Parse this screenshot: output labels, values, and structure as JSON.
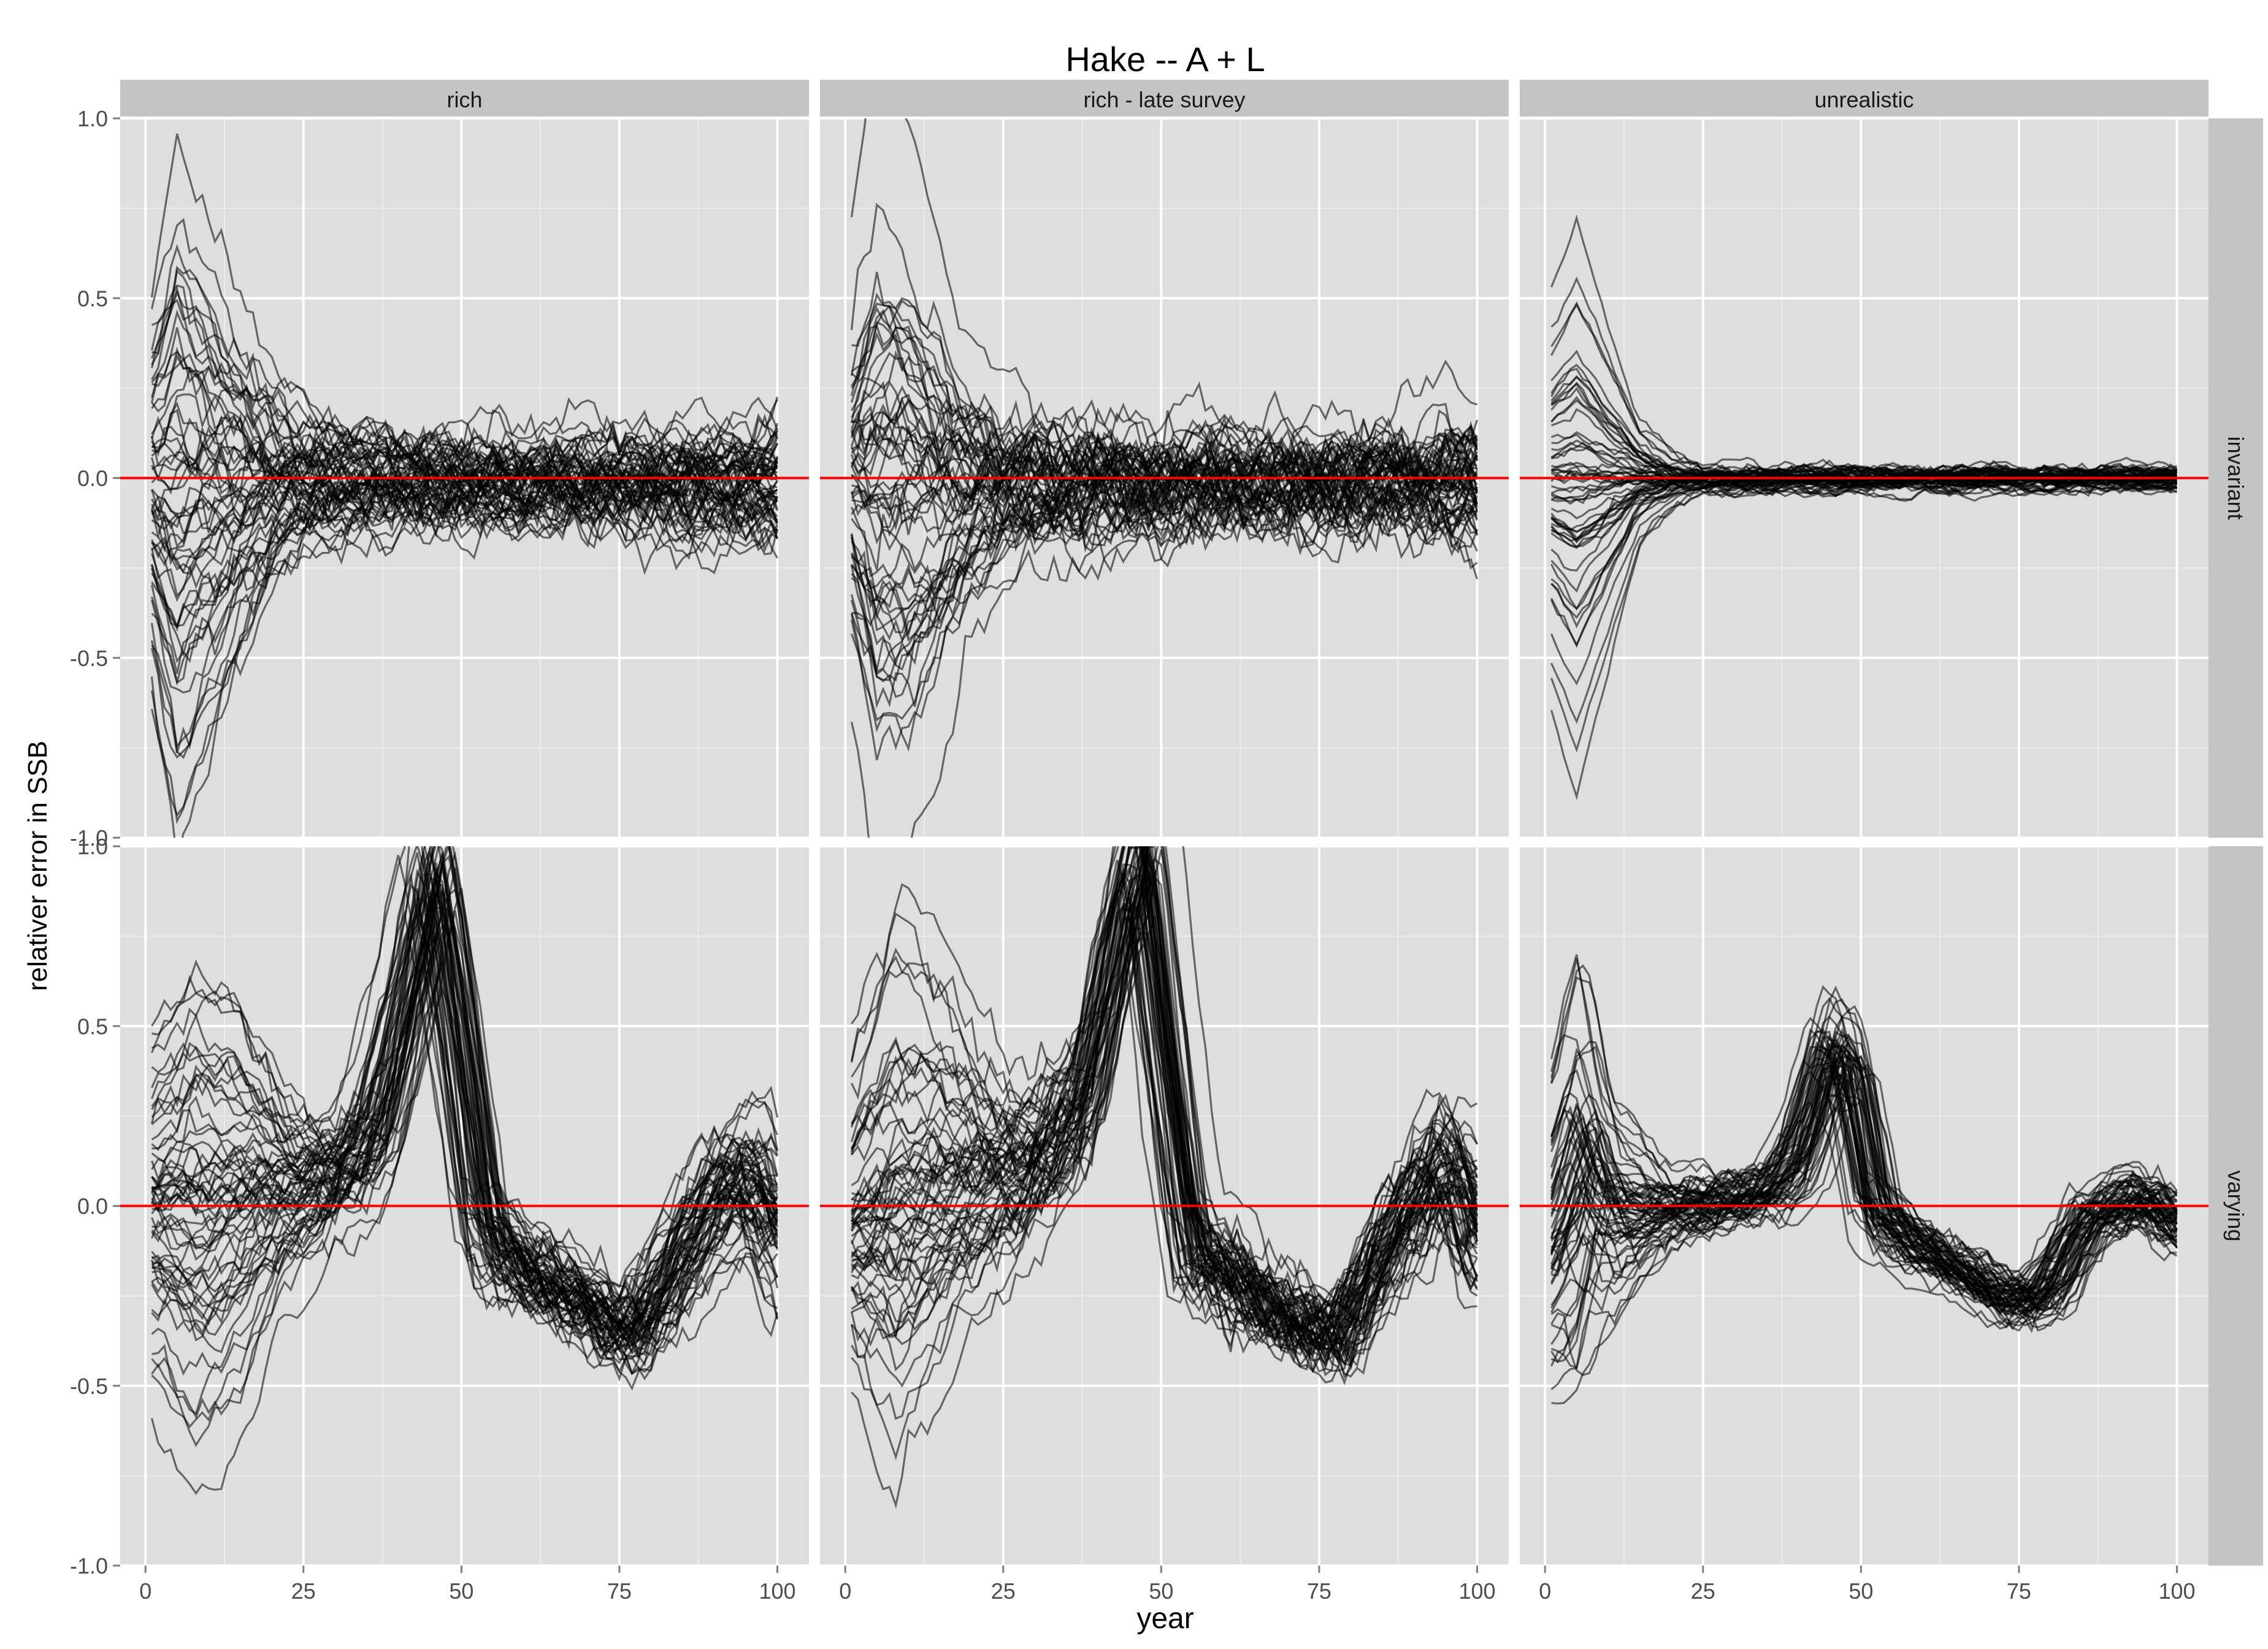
{
  "chart_data": {
    "type": "line",
    "title": "Hake -- A + L",
    "xlabel": "year",
    "ylabel": "relativer error in SSB",
    "xlim": [
      -4,
      105
    ],
    "ylim": [
      -1.0,
      1.0
    ],
    "xticks": [
      0,
      25,
      50,
      75,
      100
    ],
    "yticks": [
      -1.0,
      -0.5,
      0.0,
      0.5,
      1.0
    ],
    "ytick_labels": [
      "-1.0",
      "-0.5",
      "0.0",
      "0.5",
      "1.0"
    ],
    "columns": [
      "rich",
      "rich - late survey",
      "unrealistic"
    ],
    "rows": [
      "invariant",
      "varying"
    ],
    "grid": true,
    "reference_line": {
      "y": 0.0,
      "color": "#ff0000"
    },
    "line_color": "#000000",
    "n_lines_per_panel": 60,
    "panels": [
      {
        "column": "rich",
        "row": "invariant",
        "mean": [
          [
            0,
            0.0
          ],
          [
            100,
            0.0
          ]
        ],
        "spread": [
          [
            0,
            0.2
          ],
          [
            5,
            0.38
          ],
          [
            10,
            0.3
          ],
          [
            15,
            0.2
          ],
          [
            20,
            0.12
          ],
          [
            25,
            0.08
          ],
          [
            35,
            0.06
          ],
          [
            50,
            0.05
          ],
          [
            75,
            0.05
          ],
          [
            100,
            0.08
          ]
        ],
        "noise": 0.03
      },
      {
        "column": "rich - late survey",
        "row": "invariant",
        "mean": [
          [
            0,
            0.0
          ],
          [
            10,
            -0.03
          ],
          [
            100,
            0.0
          ]
        ],
        "spread": [
          [
            0,
            0.2
          ],
          [
            5,
            0.42
          ],
          [
            10,
            0.38
          ],
          [
            15,
            0.26
          ],
          [
            20,
            0.16
          ],
          [
            25,
            0.1
          ],
          [
            35,
            0.07
          ],
          [
            50,
            0.06
          ],
          [
            75,
            0.06
          ],
          [
            100,
            0.08
          ]
        ],
        "noise": 0.035
      },
      {
        "column": "unrealistic",
        "row": "invariant",
        "mean": [
          [
            0,
            0.0
          ],
          [
            100,
            0.0
          ]
        ],
        "spread": [
          [
            0,
            0.2
          ],
          [
            5,
            0.3
          ],
          [
            10,
            0.18
          ],
          [
            15,
            0.07
          ],
          [
            20,
            0.03
          ],
          [
            25,
            0.015
          ],
          [
            100,
            0.012
          ]
        ],
        "noise": 0.008
      },
      {
        "column": "rich",
        "row": "varying",
        "mean": [
          [
            0,
            -0.05
          ],
          [
            10,
            -0.08
          ],
          [
            20,
            0.0
          ],
          [
            30,
            0.06
          ],
          [
            37,
            0.2
          ],
          [
            43,
            0.65
          ],
          [
            46,
            0.9
          ],
          [
            50,
            0.45
          ],
          [
            54,
            -0.08
          ],
          [
            60,
            -0.18
          ],
          [
            70,
            -0.28
          ],
          [
            77,
            -0.38
          ],
          [
            85,
            -0.15
          ],
          [
            93,
            0.05
          ],
          [
            97,
            0.05
          ],
          [
            100,
            -0.1
          ]
        ],
        "spread": [
          [
            0,
            0.22
          ],
          [
            8,
            0.32
          ],
          [
            15,
            0.26
          ],
          [
            22,
            0.12
          ],
          [
            30,
            0.06
          ],
          [
            45,
            0.1
          ],
          [
            50,
            0.1
          ],
          [
            60,
            0.05
          ],
          [
            75,
            0.04
          ],
          [
            90,
            0.08
          ],
          [
            100,
            0.1
          ]
        ],
        "noise": 0.025
      },
      {
        "column": "rich - late survey",
        "row": "varying",
        "mean": [
          [
            0,
            -0.05
          ],
          [
            10,
            0.05
          ],
          [
            20,
            0.08
          ],
          [
            30,
            0.1
          ],
          [
            38,
            0.3
          ],
          [
            44,
            0.8
          ],
          [
            47,
            1.0
          ],
          [
            51,
            0.4
          ],
          [
            55,
            -0.1
          ],
          [
            62,
            -0.22
          ],
          [
            72,
            -0.32
          ],
          [
            78,
            -0.38
          ],
          [
            86,
            -0.1
          ],
          [
            94,
            0.12
          ],
          [
            98,
            0.05
          ],
          [
            100,
            -0.08
          ]
        ],
        "spread": [
          [
            0,
            0.22
          ],
          [
            8,
            0.38
          ],
          [
            15,
            0.3
          ],
          [
            22,
            0.18
          ],
          [
            30,
            0.1
          ],
          [
            45,
            0.12
          ],
          [
            50,
            0.12
          ],
          [
            60,
            0.05
          ],
          [
            75,
            0.04
          ],
          [
            90,
            0.08
          ],
          [
            100,
            0.1
          ]
        ],
        "noise": 0.03
      },
      {
        "column": "unrealistic",
        "row": "varying",
        "mean": [
          [
            0,
            -0.1
          ],
          [
            6,
            0.2
          ],
          [
            10,
            0.0
          ],
          [
            20,
            0.0
          ],
          [
            35,
            0.04
          ],
          [
            40,
            0.15
          ],
          [
            45,
            0.45
          ],
          [
            48,
            0.4
          ],
          [
            52,
            0.0
          ],
          [
            58,
            -0.1
          ],
          [
            66,
            -0.18
          ],
          [
            75,
            -0.27
          ],
          [
            80,
            -0.22
          ],
          [
            86,
            -0.02
          ],
          [
            95,
            0.03
          ],
          [
            100,
            -0.05
          ]
        ],
        "spread": [
          [
            0,
            0.2
          ],
          [
            5,
            0.28
          ],
          [
            10,
            0.15
          ],
          [
            20,
            0.05
          ],
          [
            35,
            0.03
          ],
          [
            45,
            0.08
          ],
          [
            50,
            0.06
          ],
          [
            60,
            0.03
          ],
          [
            75,
            0.03
          ],
          [
            90,
            0.04
          ],
          [
            100,
            0.04
          ]
        ],
        "noise": 0.015
      }
    ]
  }
}
